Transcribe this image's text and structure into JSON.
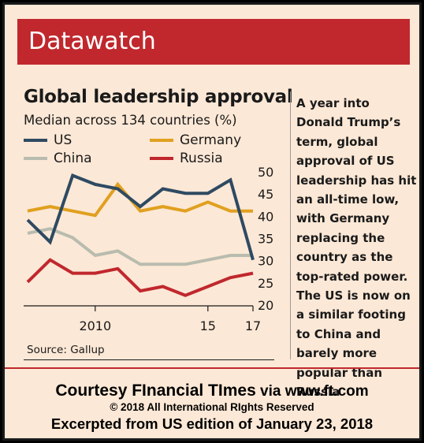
{
  "banner": {
    "title": "Datawatch"
  },
  "chart_data": {
    "type": "line",
    "title": "Global leadership approval",
    "subtitle": "Median across 134 countries (%)",
    "x": [
      2007,
      2008,
      2009,
      2010,
      2011,
      2012,
      2013,
      2014,
      2015,
      2016,
      2017
    ],
    "x_tick_labels": [
      "2010",
      "15",
      "17"
    ],
    "x_tick_values": [
      2010,
      2015,
      2017
    ],
    "ylim": [
      20,
      50
    ],
    "y_ticks": [
      20,
      25,
      30,
      35,
      40,
      45,
      50
    ],
    "grid": false,
    "y_axis_position": "right",
    "legend_position": "top-left",
    "series": [
      {
        "name": "US",
        "color": "#2e4a62",
        "values": [
          39,
          34,
          49,
          47,
          46,
          42,
          46,
          45,
          45,
          48,
          30
        ]
      },
      {
        "name": "Germany",
        "color": "#e0a020",
        "values": [
          41,
          42,
          41,
          40,
          47,
          41,
          42,
          41,
          43,
          41,
          41
        ]
      },
      {
        "name": "China",
        "color": "#b8bcae",
        "values": [
          36,
          37,
          35,
          31,
          32,
          29,
          29,
          29,
          30,
          31,
          31
        ]
      },
      {
        "name": "Russia",
        "color": "#c0282d",
        "values": [
          25,
          30,
          27,
          27,
          28,
          23,
          24,
          22,
          24,
          26,
          27
        ]
      }
    ],
    "source": "Source: Gallup"
  },
  "commentary": "A year into Donald Trump’s term, global approval of US leadership has hit an all-time low, with Germany replacing the country as the top-rated power. The US is now on a similar footing to China and barely more popular than Russia",
  "footer": {
    "courtesy_main": "Courtesy FInancial TImes",
    "courtesy_via": "via www.ft.com",
    "copyright": "© 2018 All International RIghts Reserved",
    "excerpt": "Excerpted from US edition of January 23, 2018"
  }
}
